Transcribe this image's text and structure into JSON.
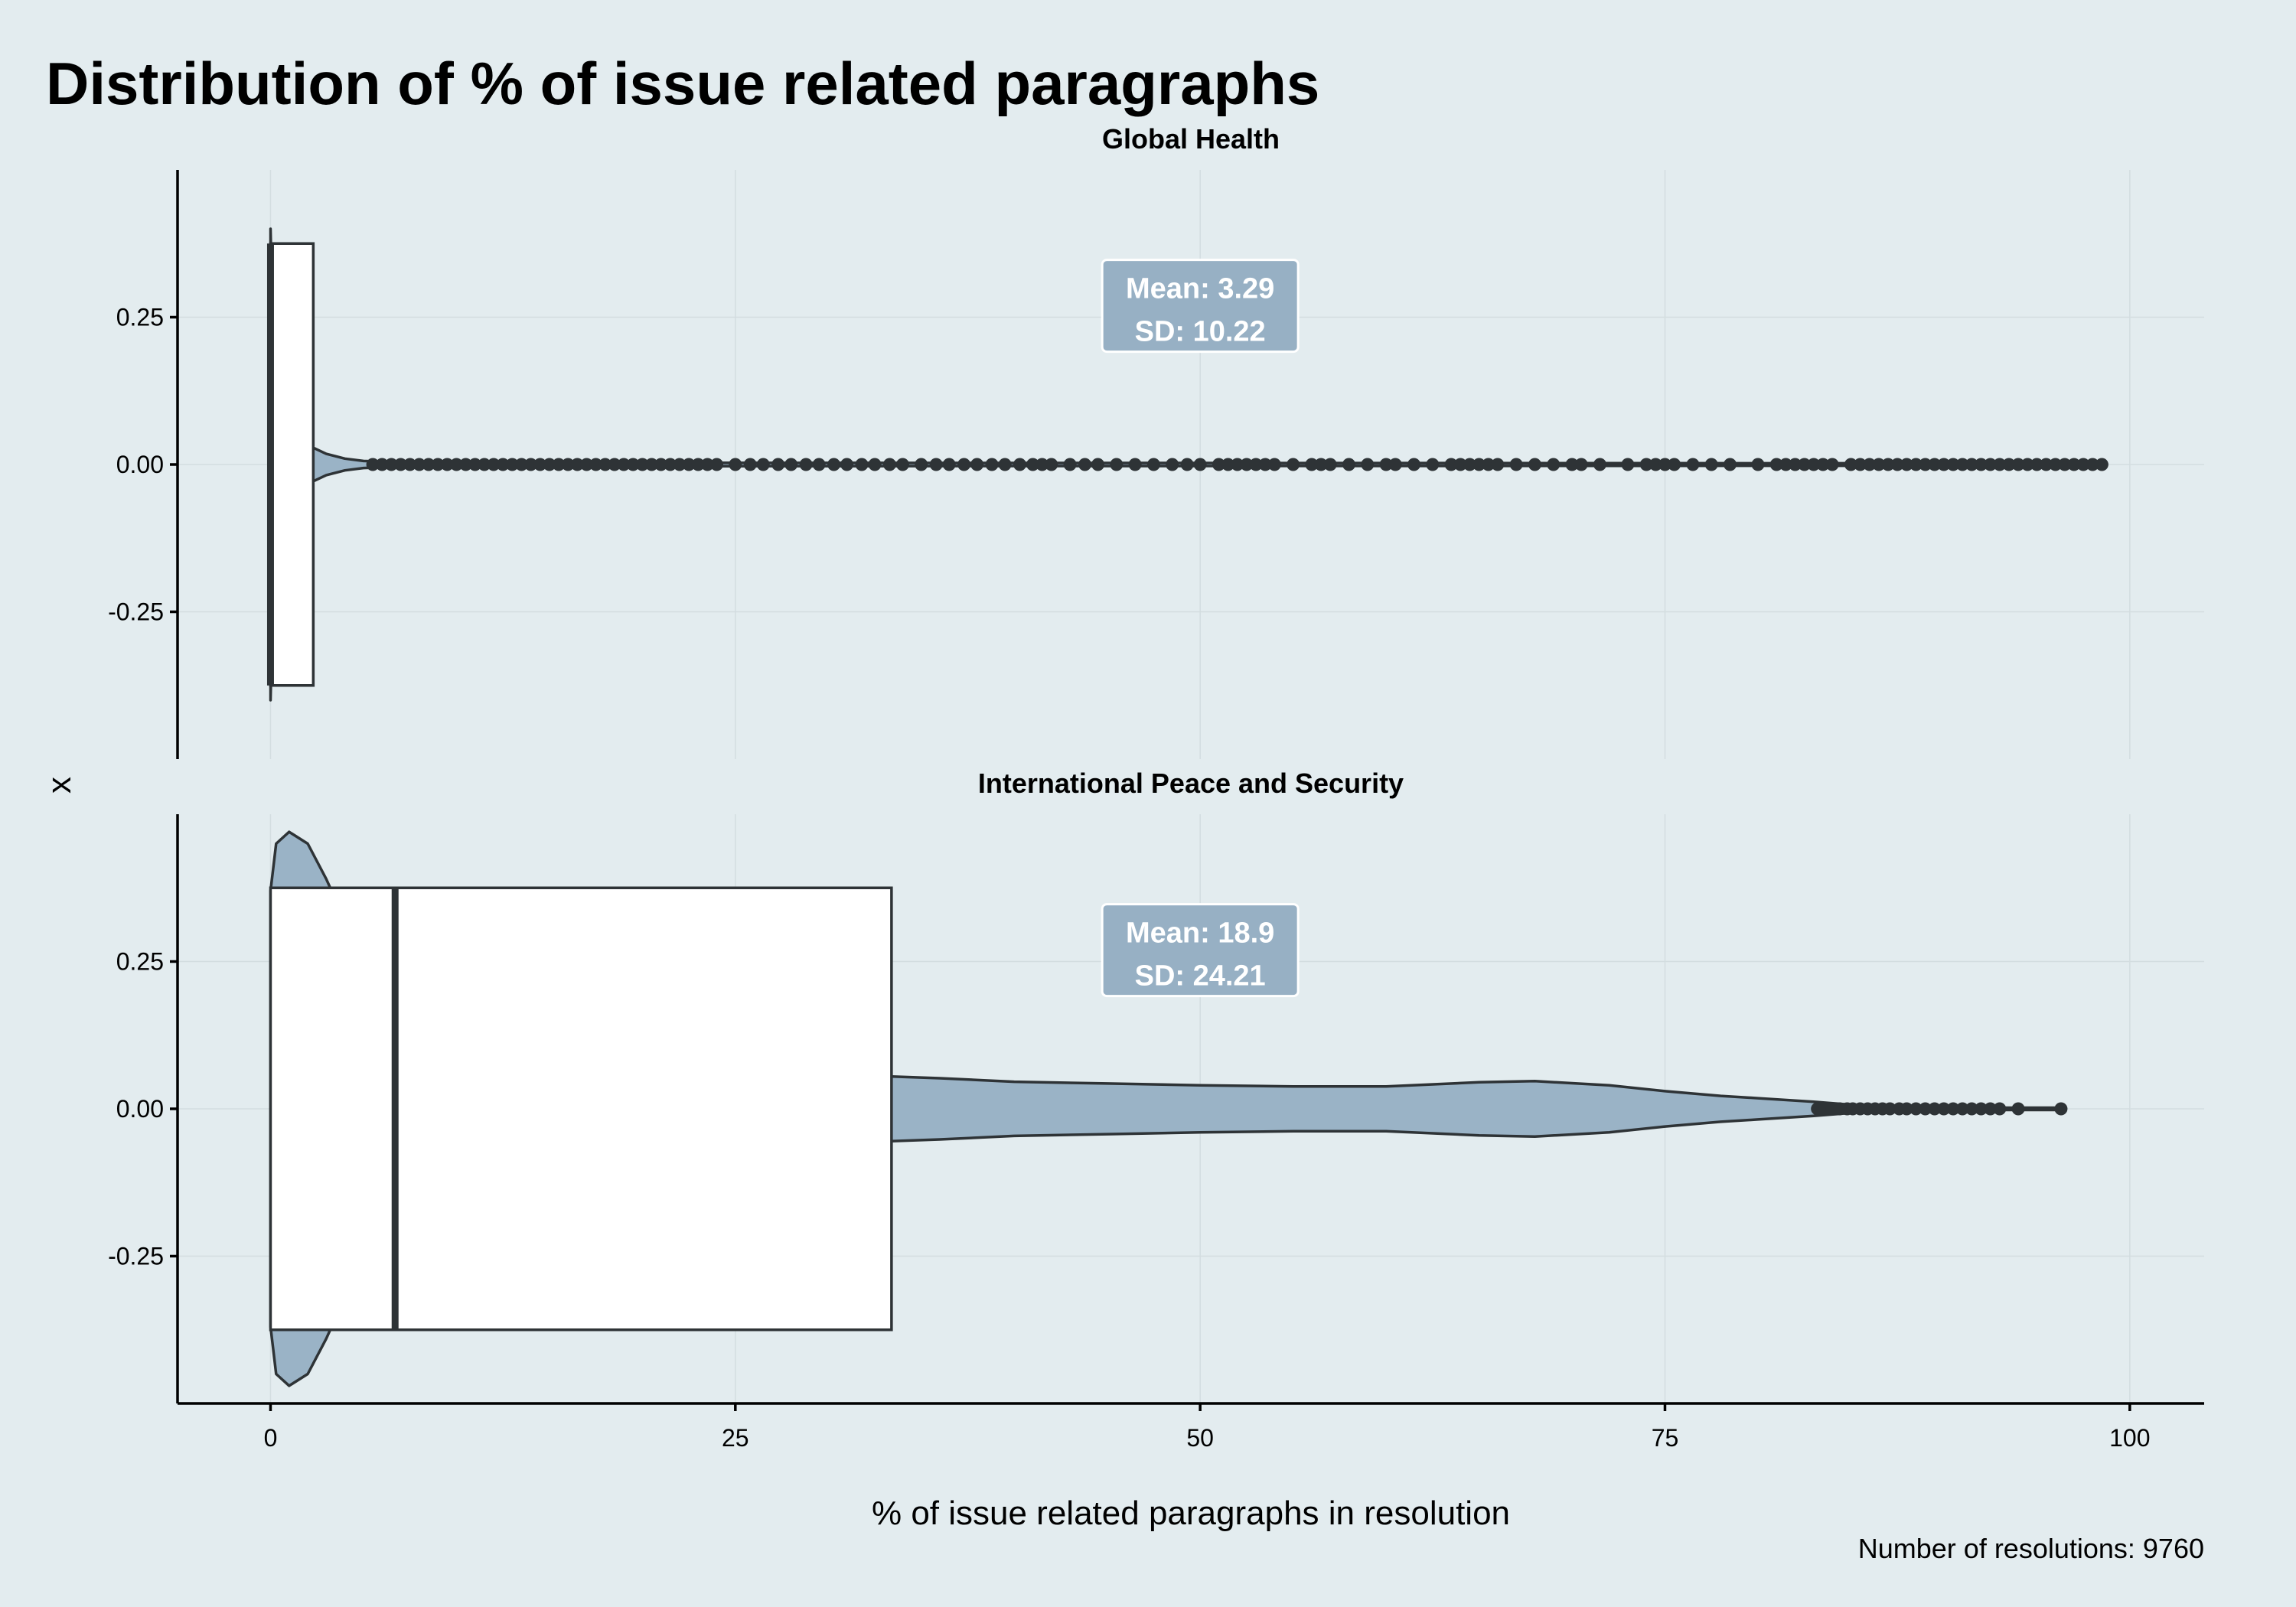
{
  "title": "Distribution of % of issue related paragraphs",
  "caption": "Number of resolutions: 9760",
  "colors": {
    "background": "#e3ecef",
    "violin_fill": "#9ab3c6",
    "label_fill": "#97b0c4",
    "outline": "#2e3336"
  },
  "chart_data": {
    "type": "violin",
    "xlabel": "% of issue related paragraphs in resolution",
    "ylabel": "x",
    "xlim": [
      -5,
      104
    ],
    "x_ticks": [
      "0",
      "25",
      "50",
      "75",
      "100"
    ],
    "y_ticks": [
      "0.25",
      "0.00",
      "-0.25"
    ],
    "grid": true,
    "facets": [
      {
        "name": "Global Health",
        "mean_label": "Mean: 3.29",
        "sd_label": "SD: 10.22",
        "box": {
          "min": 0,
          "q1": 0,
          "median": 0,
          "q3": 2.3
        },
        "violin_profile": [
          [
            0,
            0.4
          ],
          [
            0.2,
            0.12
          ],
          [
            0.4,
            0.07
          ],
          [
            0.8,
            0.045
          ],
          [
            1.5,
            0.035
          ],
          [
            2.2,
            0.03
          ],
          [
            3,
            0.018
          ],
          [
            4,
            0.01
          ],
          [
            5,
            0.006
          ],
          [
            7,
            0.004
          ],
          [
            10,
            0.003
          ],
          [
            98.5,
            0.002
          ]
        ],
        "outliers": [
          5.5,
          6,
          6.5,
          7,
          7.5,
          8,
          8.5,
          9,
          9.5,
          10,
          10.5,
          11,
          11.5,
          12,
          12.5,
          13,
          13.5,
          14,
          14.5,
          15,
          15.5,
          16,
          16.5,
          17,
          17.5,
          18,
          18.5,
          19,
          19.5,
          20,
          20.5,
          21,
          21.5,
          22,
          22.5,
          23,
          23.5,
          24,
          25,
          25.8,
          26.5,
          27.3,
          28,
          28.8,
          29.5,
          30.3,
          31,
          31.8,
          32.5,
          33.3,
          34,
          35,
          35.8,
          36.5,
          37.3,
          38,
          38.8,
          39.5,
          40.3,
          41,
          41.5,
          42,
          43,
          43.8,
          44.5,
          45.5,
          46.5,
          47.5,
          48.5,
          49.3,
          50,
          51,
          51.5,
          52,
          52.5,
          53,
          53.5,
          54,
          55,
          56,
          56.5,
          57,
          58,
          59,
          60,
          60.5,
          61.5,
          62.5,
          63.5,
          64,
          64.5,
          65,
          65.5,
          66,
          67,
          68,
          69,
          70,
          70.5,
          71.5,
          73,
          74,
          74.5,
          75,
          75.5,
          76.5,
          77.5,
          78.5,
          80,
          81,
          81.5,
          82,
          82.5,
          83,
          83.5,
          84,
          85,
          85.5,
          86,
          86.5,
          87,
          87.5,
          88,
          88.5,
          89,
          89.5,
          90,
          90.5,
          91,
          91.5,
          92,
          92.5,
          93,
          93.5,
          94,
          94.5,
          95,
          95.5,
          96,
          96.5,
          97,
          97.5,
          98,
          98.5
        ]
      },
      {
        "name": "International Peace and Security",
        "mean_label": "Mean: 18.9",
        "sd_label": "SD: 24.21",
        "box": {
          "min": 0,
          "q1": 0,
          "median": 6.7,
          "q3": 33.4
        },
        "violin_profile": [
          [
            0,
            0.37
          ],
          [
            0.3,
            0.45
          ],
          [
            1,
            0.47
          ],
          [
            2,
            0.45
          ],
          [
            3,
            0.39
          ],
          [
            4,
            0.32
          ],
          [
            5,
            0.25
          ],
          [
            6,
            0.2
          ],
          [
            7,
            0.16
          ],
          [
            8,
            0.135
          ],
          [
            10,
            0.11
          ],
          [
            12,
            0.095
          ],
          [
            15,
            0.08
          ],
          [
            20,
            0.065
          ],
          [
            25,
            0.058
          ],
          [
            30,
            0.055
          ],
          [
            33.4,
            0.055
          ],
          [
            36,
            0.052
          ],
          [
            40,
            0.046
          ],
          [
            45,
            0.043
          ],
          [
            50,
            0.04
          ],
          [
            55,
            0.038
          ],
          [
            60,
            0.038
          ],
          [
            65,
            0.045
          ],
          [
            68,
            0.047
          ],
          [
            72,
            0.04
          ],
          [
            75,
            0.03
          ],
          [
            78,
            0.022
          ],
          [
            80,
            0.018
          ],
          [
            83,
            0.012
          ],
          [
            85,
            0.007
          ],
          [
            87,
            0.004
          ],
          [
            88,
            0.002
          ],
          [
            96.3,
            0.002
          ]
        ],
        "outliers": [
          83.2,
          83.6,
          84,
          84.4,
          84.8,
          85.1,
          85.5,
          85.9,
          86.3,
          86.7,
          87.1,
          87.6,
          88,
          88.5,
          89,
          89.5,
          90,
          90.5,
          91,
          91.5,
          92,
          92.5,
          93,
          94,
          96.3
        ]
      }
    ]
  }
}
